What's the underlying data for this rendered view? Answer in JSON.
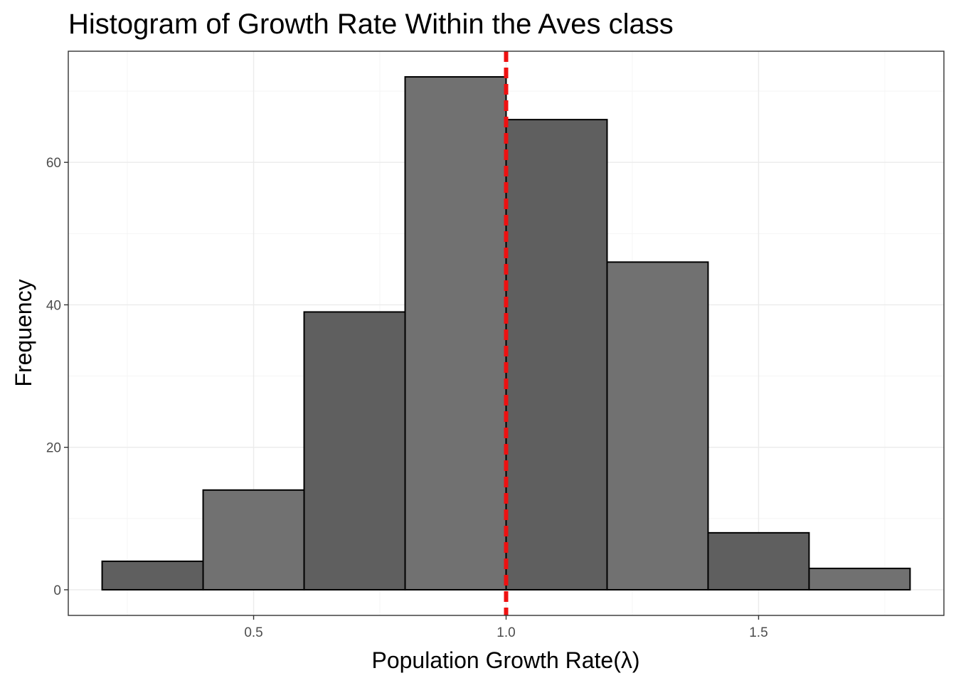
{
  "chart_data": {
    "type": "bar",
    "title": "Histogram of Growth Rate Within the  Aves class",
    "xlabel": "Population Growth Rate(λ)",
    "ylabel": "Frequency",
    "xlim": [
      0.133,
      1.867
    ],
    "ylim": [
      -3.6,
      75.6
    ],
    "x_ticks": [
      0.5,
      1.0,
      1.5
    ],
    "x_tick_labels": [
      "0.5",
      "1.0",
      "1.5"
    ],
    "x_minor": [
      0.25,
      0.75,
      1.25,
      1.75
    ],
    "y_ticks": [
      0,
      20,
      40,
      60
    ],
    "y_tick_labels": [
      "0",
      "20",
      "40",
      "60"
    ],
    "y_minor": [
      10,
      30,
      50,
      70
    ],
    "grid": true,
    "bins": [
      {
        "x0": 0.2,
        "x1": 0.4,
        "value": 4,
        "fill": "#5f5f5f"
      },
      {
        "x0": 0.4,
        "x1": 0.6,
        "value": 14,
        "fill": "#717171"
      },
      {
        "x0": 0.6,
        "x1": 0.8,
        "value": 39,
        "fill": "#5f5f5f"
      },
      {
        "x0": 0.8,
        "x1": 1.0,
        "value": 72,
        "fill": "#717171"
      },
      {
        "x0": 1.0,
        "x1": 1.2,
        "value": 66,
        "fill": "#5f5f5f"
      },
      {
        "x0": 1.2,
        "x1": 1.4,
        "value": 46,
        "fill": "#717171"
      },
      {
        "x0": 1.4,
        "x1": 1.6,
        "value": 8,
        "fill": "#5f5f5f"
      },
      {
        "x0": 1.6,
        "x1": 1.8,
        "value": 3,
        "fill": "#717171"
      }
    ],
    "reference_line": {
      "x": 1.0,
      "style": "dashed",
      "color": "#ee1111"
    }
  }
}
